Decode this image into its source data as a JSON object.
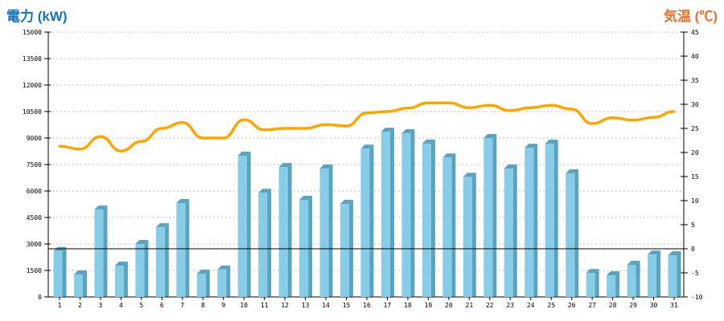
{
  "chart_data": {
    "type": "bar+line",
    "left_title": "電力 (kW)",
    "right_title": "気温 (℃)",
    "categories": [
      "1",
      "2",
      "3",
      "4",
      "5",
      "6",
      "7",
      "8",
      "9",
      "10",
      "11",
      "12",
      "13",
      "14",
      "15",
      "16",
      "17",
      "18",
      "19",
      "20",
      "21",
      "22",
      "23",
      "24",
      "25",
      "26",
      "27",
      "28",
      "29",
      "30",
      "31"
    ],
    "series": [
      {
        "name": "電力",
        "axis": "left",
        "type": "bar",
        "color": "#87cde8",
        "values": [
          2600,
          1270,
          4950,
          1770,
          3000,
          3950,
          5320,
          1320,
          1550,
          8000,
          5900,
          7360,
          5500,
          7270,
          5270,
          8400,
          9360,
          9270,
          8680,
          7900,
          6800,
          9000,
          7270,
          8450,
          8680,
          7000,
          1360,
          1230,
          1820,
          2400,
          2360
        ]
      },
      {
        "name": "気温",
        "axis": "right",
        "type": "line",
        "color": "#ffa500",
        "values": [
          21.3,
          20.7,
          23.3,
          20.3,
          22.3,
          25.0,
          26.2,
          23.0,
          23.0,
          26.8,
          24.7,
          25.0,
          25.0,
          25.8,
          25.5,
          28.2,
          28.5,
          29.2,
          30.3,
          30.3,
          29.3,
          29.8,
          28.7,
          29.3,
          29.8,
          29.0,
          26.0,
          27.2,
          26.7,
          27.3,
          28.5
        ]
      }
    ],
    "left_axis": {
      "min": 0,
      "max": 15000,
      "step": 1500,
      "ticks": [
        "0",
        "1500",
        "3000",
        "4500",
        "6000",
        "7500",
        "9000",
        "10500",
        "12000",
        "13500",
        "15000"
      ]
    },
    "right_axis": {
      "min": -10,
      "max": 45,
      "step": 5,
      "ticks": [
        "-10",
        "-5",
        "0",
        "5",
        "10",
        "15",
        "20",
        "25",
        "30",
        "35",
        "40",
        "45"
      ]
    },
    "reference_line": {
      "axis": "right",
      "value": 0
    },
    "grid": true
  }
}
